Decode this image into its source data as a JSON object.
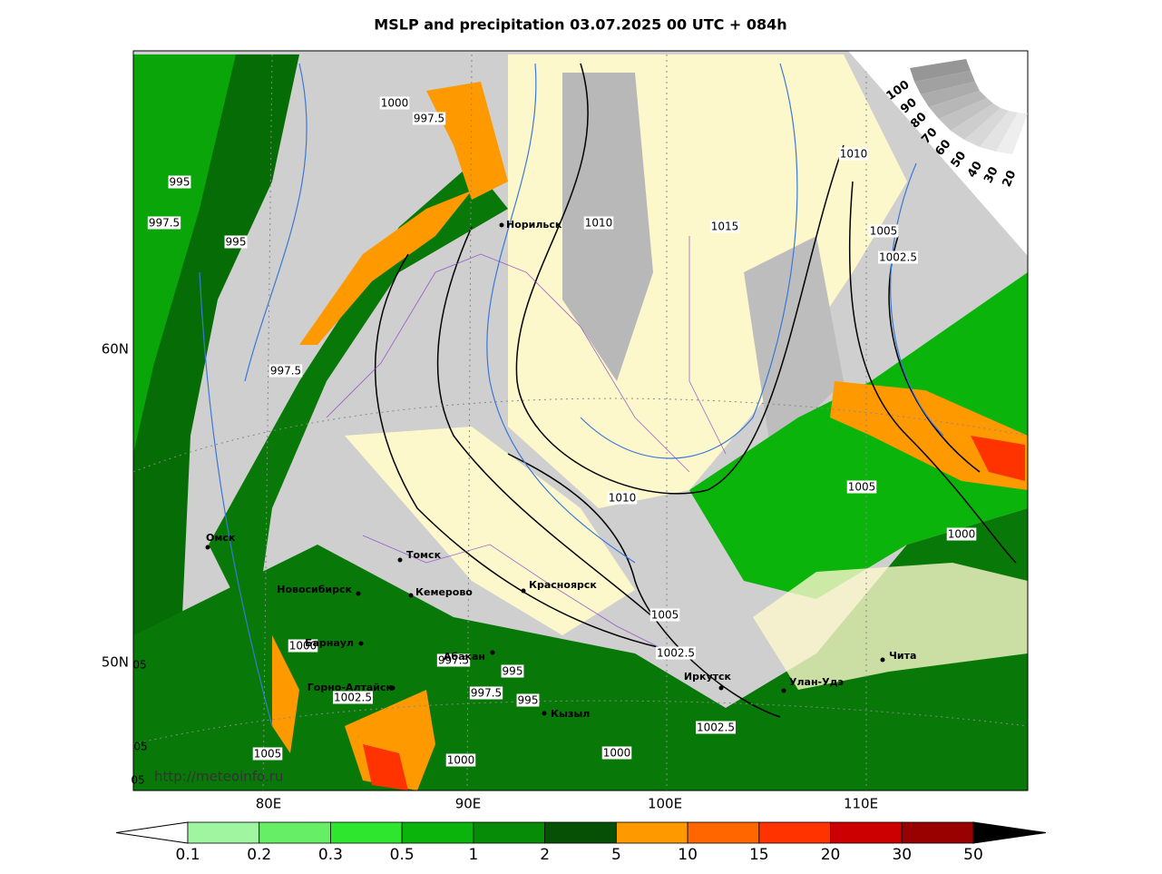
{
  "title": "MSLP and precipitation 03.07.2025 00 UTC + 084h",
  "lon_labels": [
    "80E",
    "90E",
    "100E",
    "110E"
  ],
  "lat_labels": [
    "60N",
    "50N"
  ],
  "cities": [
    "Норильск",
    "Томск",
    "Омск",
    "Новосибирск",
    "Кемерово",
    "Красноярск",
    "Барнаул",
    "Абакан",
    "Горно-Алтайск",
    "Кызыл",
    "Иркутск",
    "Улан-Удэ",
    "Чита"
  ],
  "isobar_labels": [
    "1000",
    "997.5",
    "995",
    "997.5",
    "995",
    "1010",
    "1015",
    "1010",
    "1005",
    "1002.5",
    "997.5",
    "1010",
    "1005",
    "1000",
    "1005",
    "1002.5",
    "1000",
    "997.5",
    "995",
    "997.5",
    "995",
    "1002.5",
    "1005",
    "1000",
    "1000",
    "1002.5"
  ],
  "edge_labels": [
    "05",
    "05",
    "05"
  ],
  "cloud_scale": [
    "100",
    "90",
    "80",
    "70",
    "60",
    "50",
    "40",
    "30",
    "20"
  ],
  "url": "http://meteoinfo.ru",
  "colorbar": {
    "bounds": [
      "0.1",
      "0.2",
      "0.3",
      "0.5",
      "1",
      "2",
      "5",
      "10",
      "15",
      "20",
      "30",
      "50"
    ],
    "colors": [
      "#a0f5a0",
      "#66ee66",
      "#2ee62e",
      "#0ab40a",
      "#078c07",
      "#055005",
      "#ff9900",
      "#ff6600",
      "#ff3300",
      "#cc0000",
      "#990000"
    ]
  }
}
